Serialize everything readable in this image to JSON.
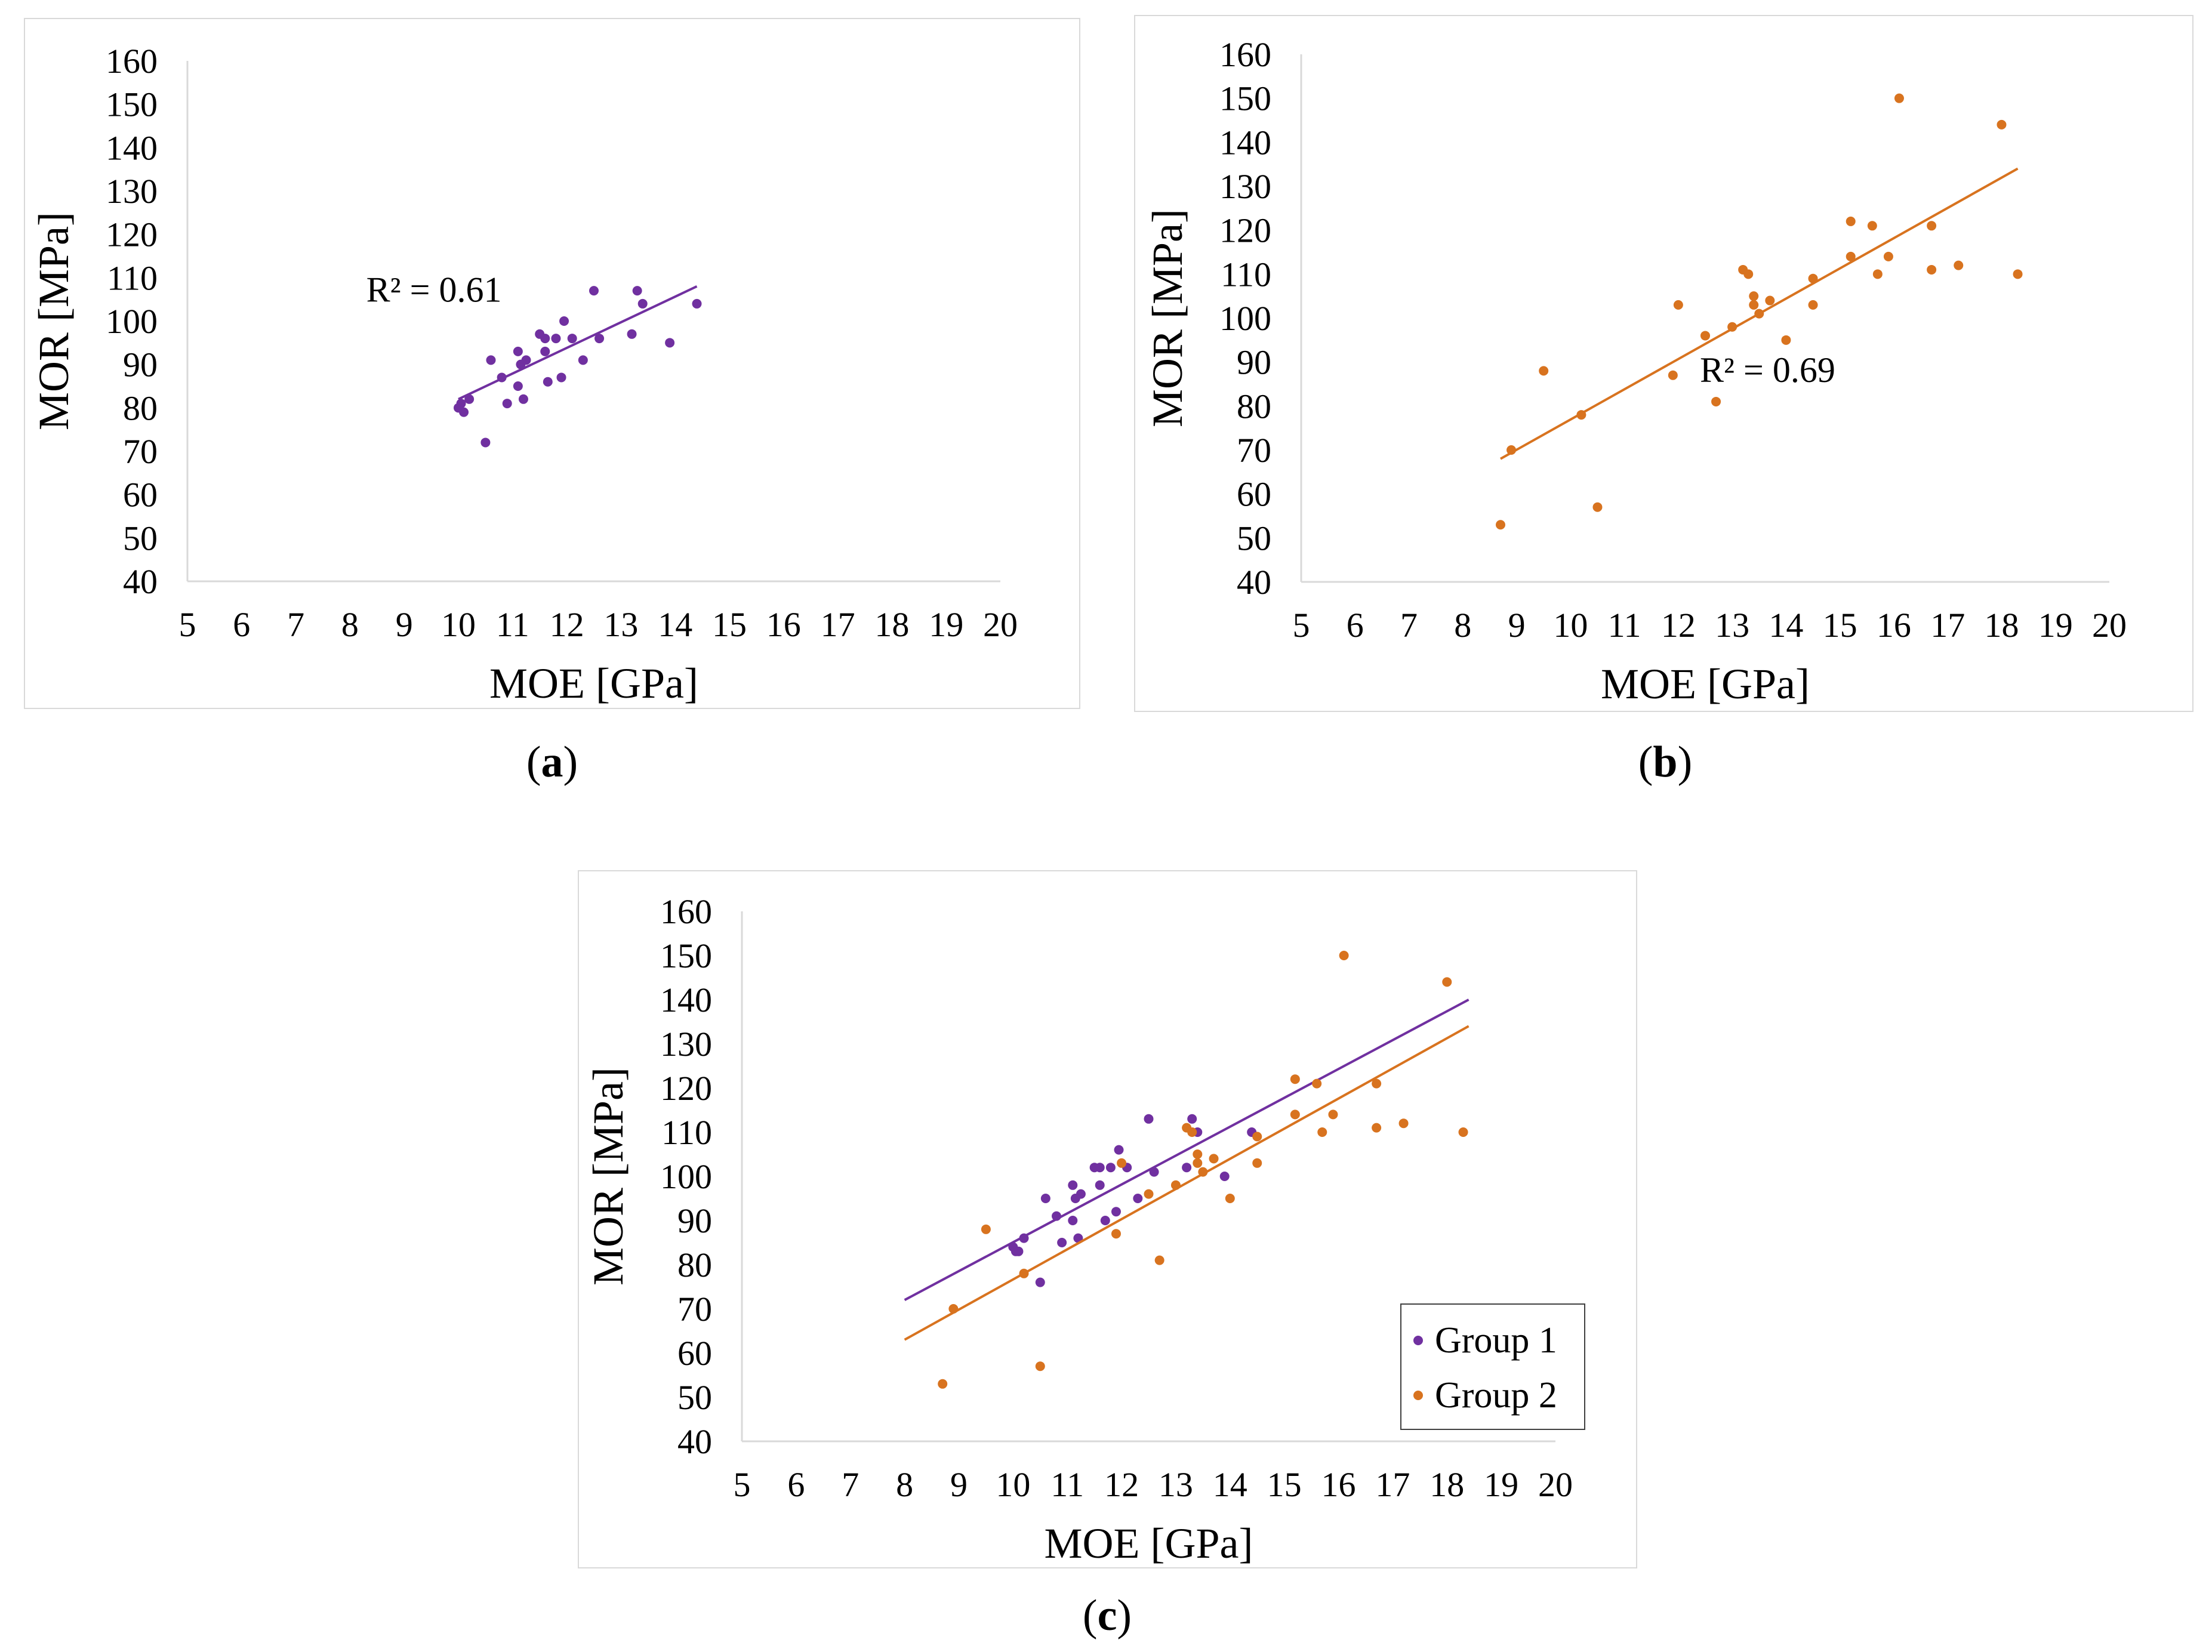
{
  "colors": {
    "group1": "#7030a0",
    "group2": "#d8731f",
    "axis": "#d9d9d9"
  },
  "chart_data": [
    {
      "id": "a",
      "type": "scatter",
      "panel_label": "a",
      "xlabel": "MOE [GPa]",
      "ylabel": "MOR [MPa]",
      "xlim": [
        5,
        20
      ],
      "ylim": [
        40,
        160
      ],
      "xticks": [
        5,
        6,
        7,
        8,
        9,
        10,
        11,
        12,
        13,
        14,
        15,
        16,
        17,
        18,
        19,
        20
      ],
      "yticks": [
        40,
        50,
        60,
        70,
        80,
        90,
        100,
        110,
        120,
        130,
        140,
        150,
        160
      ],
      "grid": false,
      "series": [
        {
          "color": "#7030a0",
          "x": [
            10.0,
            10.05,
            10.1,
            10.2,
            10.6,
            10.5,
            10.8,
            10.9,
            11.1,
            11.1,
            11.15,
            11.25,
            11.2,
            11.5,
            11.6,
            11.6,
            11.65,
            11.8,
            11.9,
            11.95,
            12.1,
            12.3,
            12.5,
            12.6,
            13.2,
            13.3,
            13.4,
            13.9,
            14.4
          ],
          "y": [
            80,
            81,
            79,
            82,
            91,
            72,
            87,
            81,
            93,
            85,
            90,
            91,
            82,
            97,
            96,
            93,
            86,
            96,
            87,
            100,
            96,
            91,
            107,
            96,
            97,
            107,
            104,
            95,
            104
          ],
          "trendline": {
            "x": [
              10.0,
              14.4
            ],
            "y": [
              82,
              108
            ]
          },
          "annotation": "R² = 0.61",
          "annotation_at": [
            8.3,
            104.5
          ]
        }
      ]
    },
    {
      "id": "b",
      "type": "scatter",
      "panel_label": "b",
      "xlabel": "MOE [GPa]",
      "ylabel": "MOR [MPa]",
      "xlim": [
        5,
        20
      ],
      "ylim": [
        40,
        160
      ],
      "xticks": [
        5,
        6,
        7,
        8,
        9,
        10,
        11,
        12,
        13,
        14,
        15,
        16,
        17,
        18,
        19,
        20
      ],
      "yticks": [
        40,
        50,
        60,
        70,
        80,
        90,
        100,
        110,
        120,
        130,
        140,
        150,
        160
      ],
      "grid": false,
      "series": [
        {
          "color": "#d8731f",
          "x": [
            8.7,
            8.9,
            9.5,
            10.2,
            10.5,
            11.9,
            12.0,
            12.5,
            12.7,
            13.0,
            13.2,
            13.3,
            13.4,
            13.4,
            13.5,
            13.7,
            14.0,
            14.5,
            14.5,
            15.2,
            15.2,
            15.6,
            15.7,
            15.9,
            16.1,
            16.7,
            16.7,
            17.2,
            18.0,
            18.3
          ],
          "y": [
            53,
            70,
            88,
            78,
            57,
            87,
            103,
            96,
            81,
            98,
            111,
            110,
            105,
            103,
            101,
            104,
            95,
            109,
            103,
            122,
            114,
            121,
            110,
            114,
            150,
            121,
            111,
            112,
            144,
            110
          ],
          "trendline": {
            "x": [
              8.7,
              18.3
            ],
            "y": [
              68,
              134
            ]
          },
          "annotation": "R² = 0.69",
          "annotation_at": [
            12.4,
            85.5
          ]
        }
      ]
    },
    {
      "id": "c",
      "type": "scatter",
      "panel_label": "c",
      "xlabel": "MOE [GPa]",
      "ylabel": "MOR [MPa]",
      "xlim": [
        5,
        20
      ],
      "ylim": [
        40,
        160
      ],
      "xticks": [
        5,
        6,
        7,
        8,
        9,
        10,
        11,
        12,
        13,
        14,
        15,
        16,
        17,
        18,
        19,
        20
      ],
      "yticks": [
        40,
        50,
        60,
        70,
        80,
        90,
        100,
        110,
        120,
        130,
        140,
        150,
        160
      ],
      "grid": false,
      "legend": "bottom-right",
      "series": [
        {
          "name": "Group 1",
          "color": "#7030a0",
          "x": [
            10.0,
            10.05,
            10.1,
            10.2,
            10.5,
            10.6,
            10.8,
            10.9,
            11.1,
            11.1,
            11.15,
            11.25,
            11.2,
            11.5,
            11.6,
            11.6,
            11.7,
            11.8,
            11.9,
            11.95,
            12.1,
            12.3,
            12.5,
            12.6,
            13.2,
            13.3,
            13.4,
            13.9,
            14.4
          ],
          "y": [
            84,
            83,
            83,
            86,
            76,
            95,
            91,
            85,
            98,
            90,
            95,
            96,
            86,
            102,
            102,
            98,
            90,
            102,
            92,
            106,
            102,
            95,
            113,
            101,
            102,
            113,
            110,
            100,
            110
          ],
          "trendline": {
            "x": [
              8.0,
              18.4
            ],
            "y": [
              72,
              140
            ]
          }
        },
        {
          "name": "Group 2",
          "color": "#d8731f",
          "x": [
            8.7,
            8.9,
            9.5,
            10.2,
            10.5,
            11.9,
            12.0,
            12.5,
            12.7,
            13.0,
            13.2,
            13.3,
            13.4,
            13.4,
            13.5,
            13.7,
            14.0,
            14.5,
            14.5,
            15.2,
            15.2,
            15.6,
            15.7,
            15.9,
            16.1,
            16.7,
            16.7,
            17.2,
            18.0,
            18.3
          ],
          "y": [
            53,
            70,
            88,
            78,
            57,
            87,
            103,
            96,
            81,
            98,
            111,
            110,
            105,
            103,
            101,
            104,
            95,
            109,
            103,
            122,
            114,
            121,
            110,
            114,
            150,
            121,
            111,
            112,
            144,
            110
          ],
          "trendline": {
            "x": [
              8.0,
              18.4
            ],
            "y": [
              63,
              134
            ]
          }
        }
      ]
    }
  ]
}
